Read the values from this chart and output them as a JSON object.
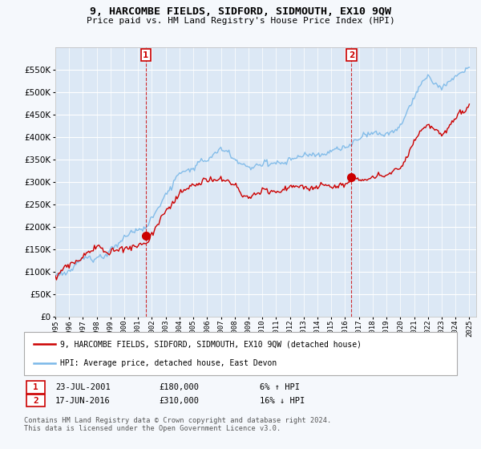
{
  "title": "9, HARCOMBE FIELDS, SIDFORD, SIDMOUTH, EX10 9QW",
  "subtitle": "Price paid vs. HM Land Registry's House Price Index (HPI)",
  "legend_line1": "9, HARCOMBE FIELDS, SIDFORD, SIDMOUTH, EX10 9QW (detached house)",
  "legend_line2": "HPI: Average price, detached house, East Devon",
  "footnote": "Contains HM Land Registry data © Crown copyright and database right 2024.\nThis data is licensed under the Open Government Licence v3.0.",
  "sale1_date": "23-JUL-2001",
  "sale1_price": "£180,000",
  "sale1_hpi": "6% ↑ HPI",
  "sale2_date": "17-JUN-2016",
  "sale2_price": "£310,000",
  "sale2_hpi": "16% ↓ HPI",
  "hpi_color": "#7ab8e8",
  "price_color": "#cc0000",
  "marker_color": "#cc0000",
  "background_color": "#f5f8fc",
  "plot_bg_color": "#dce8f5",
  "grid_color": "#ffffff",
  "ylim_min": 0,
  "ylim_max": 600000,
  "yticks": [
    0,
    50000,
    100000,
    150000,
    200000,
    250000,
    300000,
    350000,
    400000,
    450000,
    500000,
    550000
  ],
  "sale1_year": 2001.55,
  "sale1_value": 180000,
  "sale2_year": 2016.46,
  "sale2_value": 310000,
  "xmin": 1995,
  "xmax": 2025.5
}
